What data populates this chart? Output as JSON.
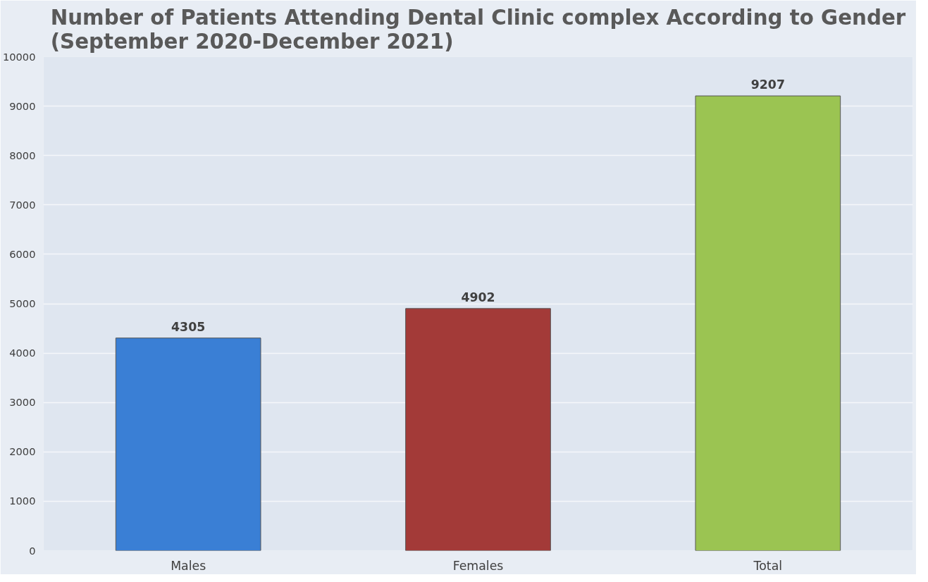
{
  "chart_data": {
    "type": "bar",
    "title": "Number of Patients Attending Dental Clinic complex According to Gender\n(September 2020-December 2021)",
    "categories": [
      "Males",
      "Females",
      "Total"
    ],
    "values": [
      4305,
      4902,
      9207
    ],
    "colors": [
      "#3a7fd5",
      "#a33a38",
      "#9bc452"
    ],
    "ylim": [
      0,
      10000
    ],
    "yticks": [
      0,
      1000,
      2000,
      3000,
      4000,
      5000,
      6000,
      7000,
      8000,
      9000,
      10000
    ],
    "grid": "y",
    "data_labels": true
  }
}
